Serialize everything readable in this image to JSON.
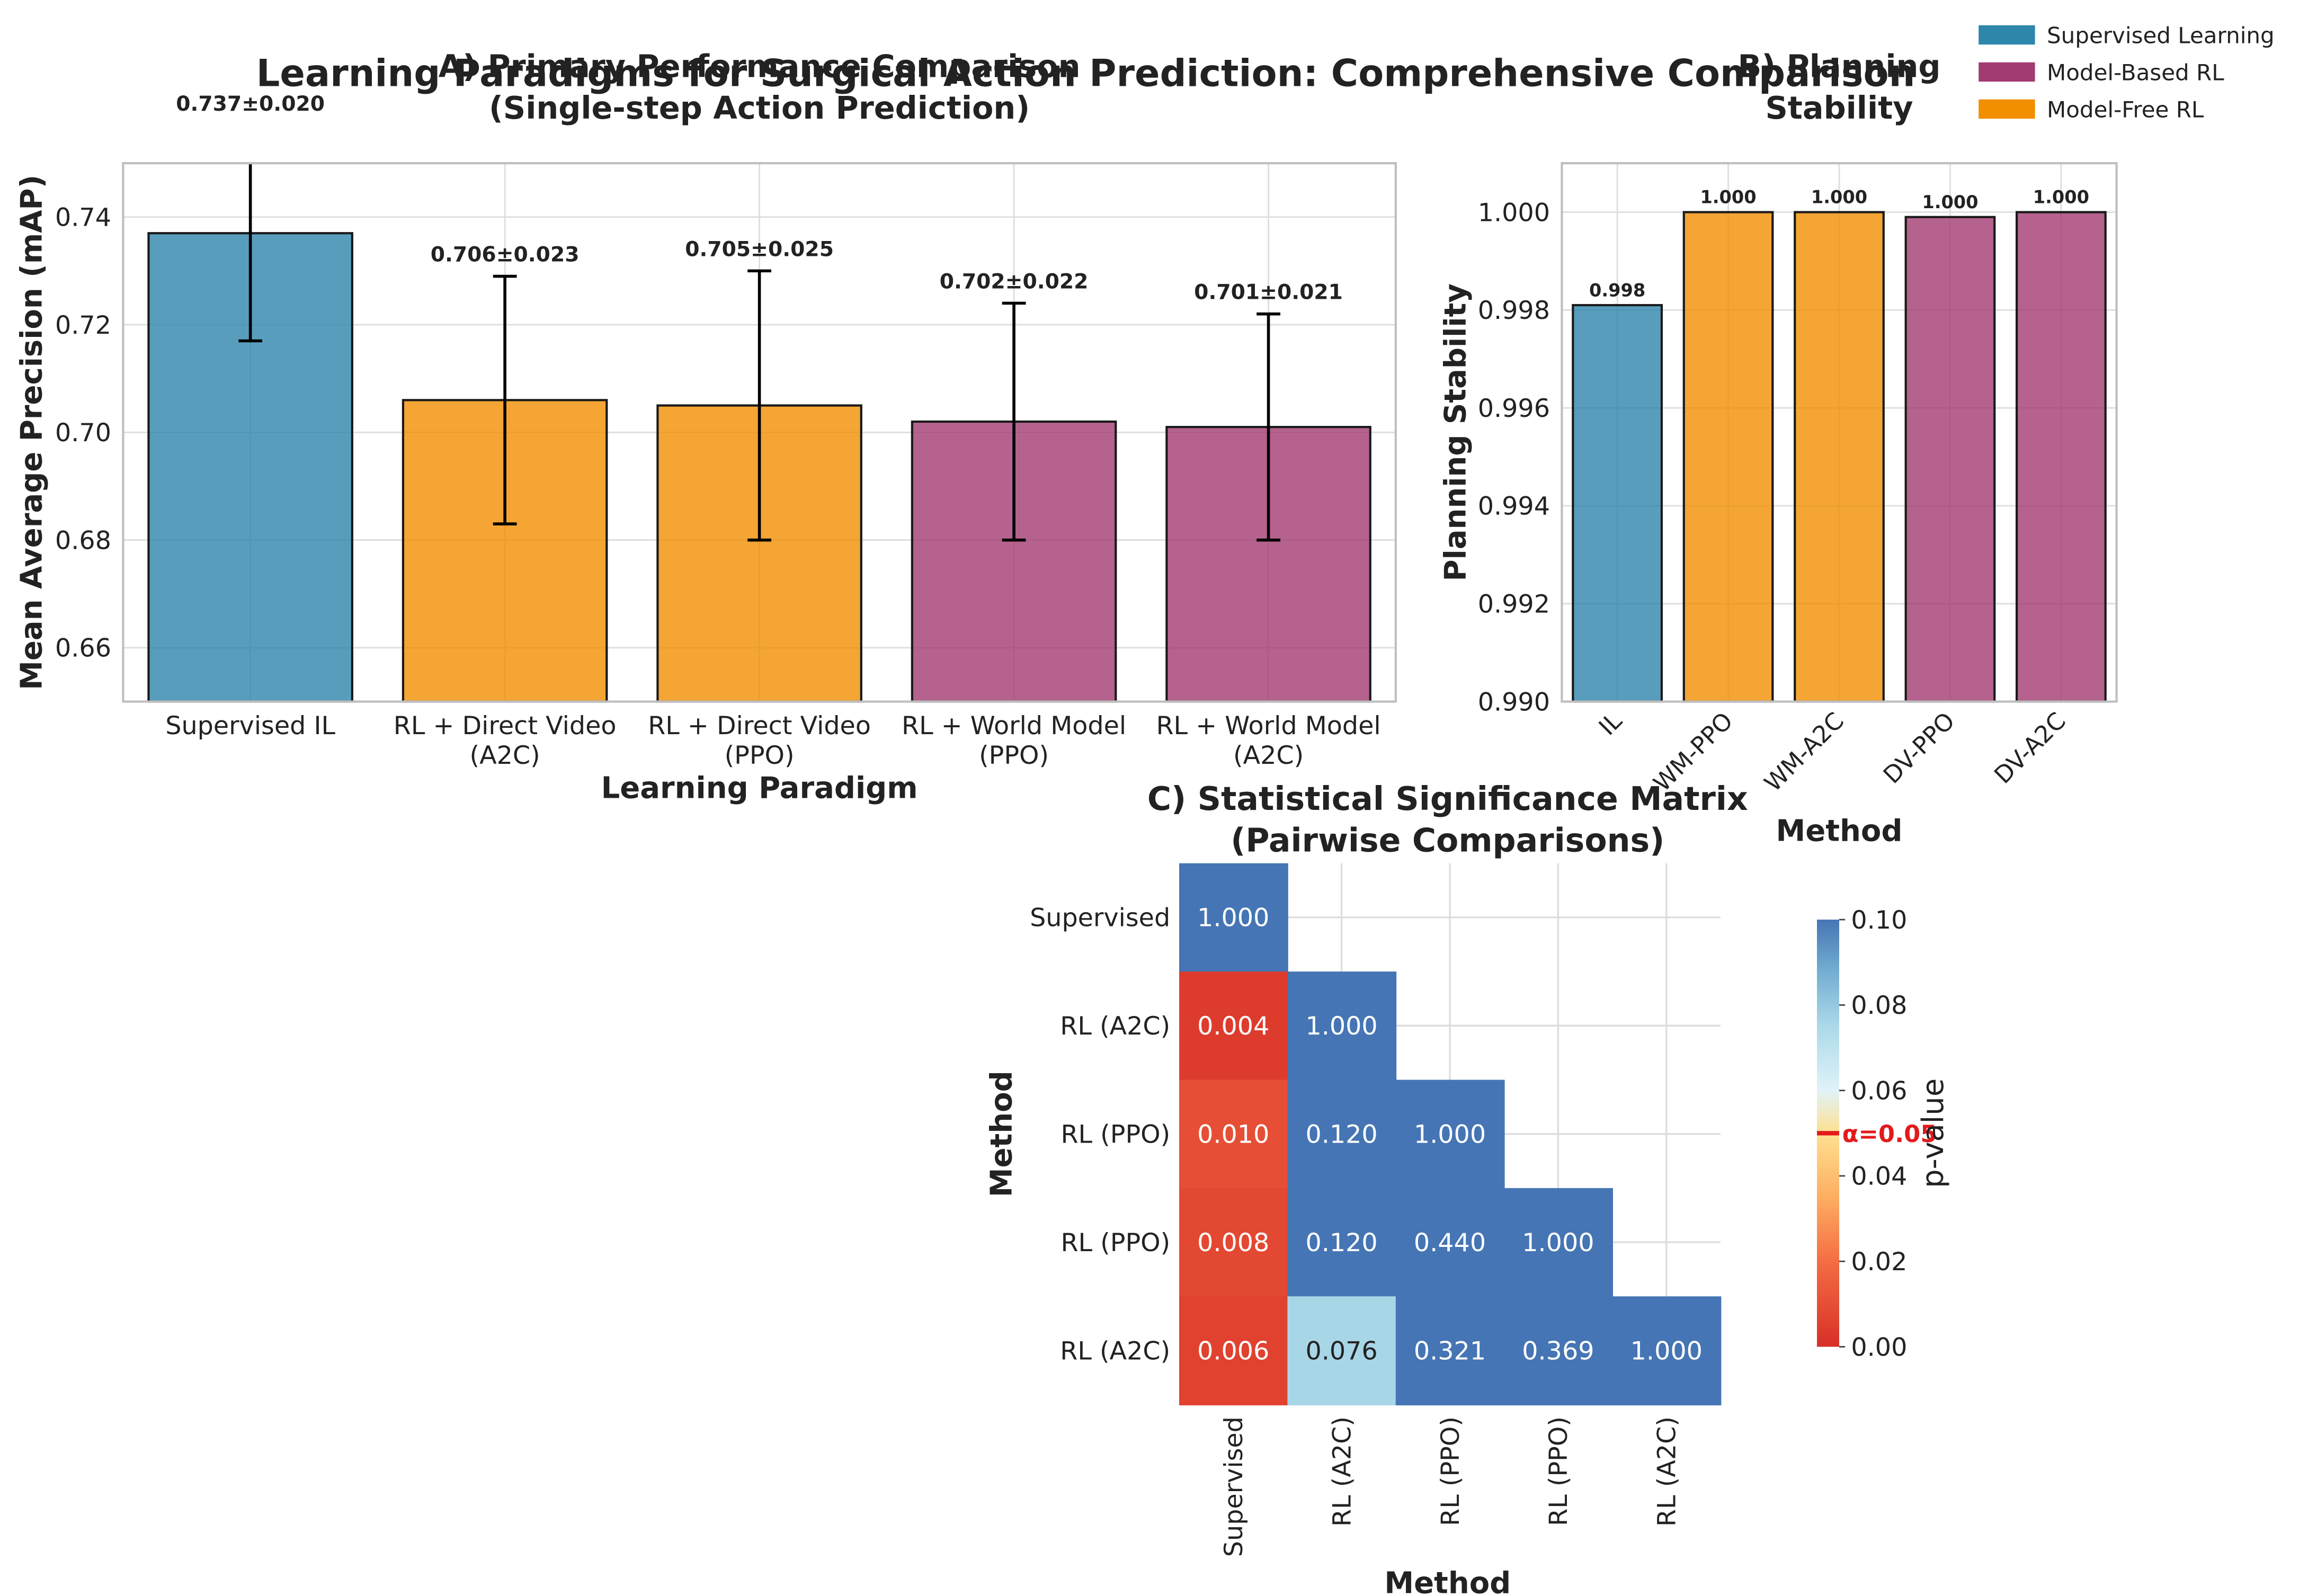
{
  "suptitle": "Learning Paradigms for Surgical Action Prediction: Comprehensive Comparison",
  "legend": {
    "items": [
      {
        "label": "Supervised Learning",
        "color": "#2E86AB"
      },
      {
        "label": "Model-Based RL",
        "color": "#A23B72"
      },
      {
        "label": "Model-Free RL",
        "color": "#F18F01"
      }
    ]
  },
  "chart_data": [
    {
      "type": "bar",
      "title": "A) Primary Performance Comparison\n(Single-step Action Prediction)",
      "xlabel": "Learning Paradigm",
      "ylabel": "Mean Average Precision (mAP)",
      "ylim": [
        0.65,
        0.75
      ],
      "yticks": [
        "0.66",
        "0.68",
        "0.70",
        "0.72",
        "0.74"
      ],
      "categories": [
        "Supervised IL",
        "RL + Direct Video\n(A2C)",
        "RL + Direct Video\n(PPO)",
        "RL + World Model\n(PPO)",
        "RL + World Model\n(A2C)"
      ],
      "values": [
        0.737,
        0.706,
        0.705,
        0.702,
        0.701
      ],
      "errors": [
        0.02,
        0.023,
        0.025,
        0.022,
        0.021
      ],
      "value_labels": [
        "0.737±0.020",
        "0.706±0.023",
        "0.705±0.025",
        "0.702±0.022",
        "0.701±0.021"
      ],
      "colors": [
        "#2E86AB",
        "#F18F01",
        "#F18F01",
        "#A23B72",
        "#A23B72"
      ]
    },
    {
      "type": "bar",
      "title": "B) Planning\nStability",
      "xlabel": "Method",
      "ylabel": "Planning Stability",
      "ylim": [
        0.99,
        1.001
      ],
      "yticks": [
        "0.990",
        "0.992",
        "0.994",
        "0.996",
        "0.998",
        "1.000"
      ],
      "categories": [
        "IL",
        "WM-PPO",
        "WM-A2C",
        "DV-PPO",
        "DV-A2C"
      ],
      "values": [
        0.9981,
        1.0,
        1.0,
        0.9999,
        1.0
      ],
      "value_labels": [
        "0.998",
        "1.000",
        "1.000",
        "1.000",
        "1.000"
      ],
      "colors": [
        "#2E86AB",
        "#F18F01",
        "#F18F01",
        "#A23B72",
        "#A23B72"
      ]
    },
    {
      "type": "heatmap",
      "title": "C) Statistical Significance Matrix\n(Pairwise Comparisons)",
      "xlabel": "Method",
      "ylabel": "Method",
      "row_labels": [
        "Supervised",
        "RL (A2C)",
        "RL (PPO)",
        "RL (PPO)",
        "RL (A2C)"
      ],
      "col_labels": [
        "Supervised",
        "RL (A2C)",
        "RL (PPO)",
        "RL (PPO)",
        "RL (A2C)"
      ],
      "values": [
        [
          1.0,
          null,
          null,
          null,
          null
        ],
        [
          0.004,
          1.0,
          null,
          null,
          null
        ],
        [
          0.01,
          0.12,
          1.0,
          null,
          null
        ],
        [
          0.008,
          0.12,
          0.44,
          1.0,
          null
        ],
        [
          0.006,
          0.076,
          0.321,
          0.369,
          1.0
        ]
      ],
      "colorbar": {
        "label": "p-value",
        "range": [
          0.0,
          0.1
        ],
        "ticks": [
          "0.00",
          "0.02",
          "0.04",
          "0.06",
          "0.08",
          "0.10"
        ],
        "alpha_line": 0.05,
        "alpha_label": "α=0.05"
      }
    }
  ]
}
